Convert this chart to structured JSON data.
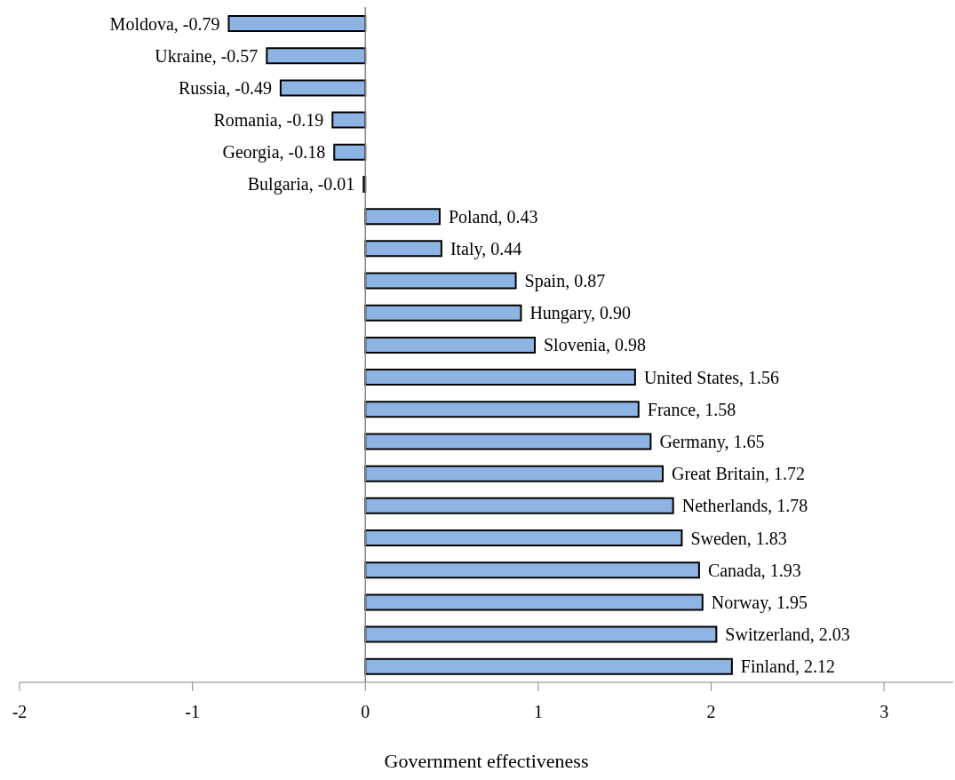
{
  "chart_data": {
    "type": "bar",
    "orientation": "horizontal",
    "xlabel": "Government effectiveness",
    "categories": [
      null,
      null,
      null,
      null,
      null,
      null,
      null,
      null,
      null,
      null,
      null,
      null,
      null,
      null,
      null,
      null,
      null,
      null,
      null,
      null,
      null
    ],
    "values": [
      -0.79,
      -0.57,
      -0.49,
      -0.19,
      -0.18,
      -0.01,
      0.43,
      0.44,
      0.87,
      0.9,
      0.98,
      1.56,
      1.58,
      1.65,
      1.72,
      1.78,
      1.83,
      1.93,
      1.95,
      2.03,
      2.12
    ],
    "value_labels": [
      "Moldova, -0.79",
      "Ukraine, -0.57",
      "Russia, -0.49",
      "Romania, -0.19",
      "Georgia, -0.18",
      "Bulgaria, -0.01",
      "Poland, 0.43",
      "Italy, 0.44",
      "Spain, 0.87",
      "Hungary, 0.90",
      "Slovenia, 0.98",
      "United States, 1.56",
      "France, 1.58",
      "Germany, 1.65",
      "Great Britain, 1.72",
      "Netherlands, 1.78",
      "Sweden, 1.83",
      "Canada, 1.93",
      "Norway, 1.95",
      "Switzerland, 2.03",
      "Finland, 2.12"
    ],
    "color": "#8eb4e3",
    "xlim": [
      -2,
      3.4
    ],
    "xticks": [
      -2,
      -1,
      0,
      1,
      2,
      3
    ],
    "tick_labels": "x"
  }
}
